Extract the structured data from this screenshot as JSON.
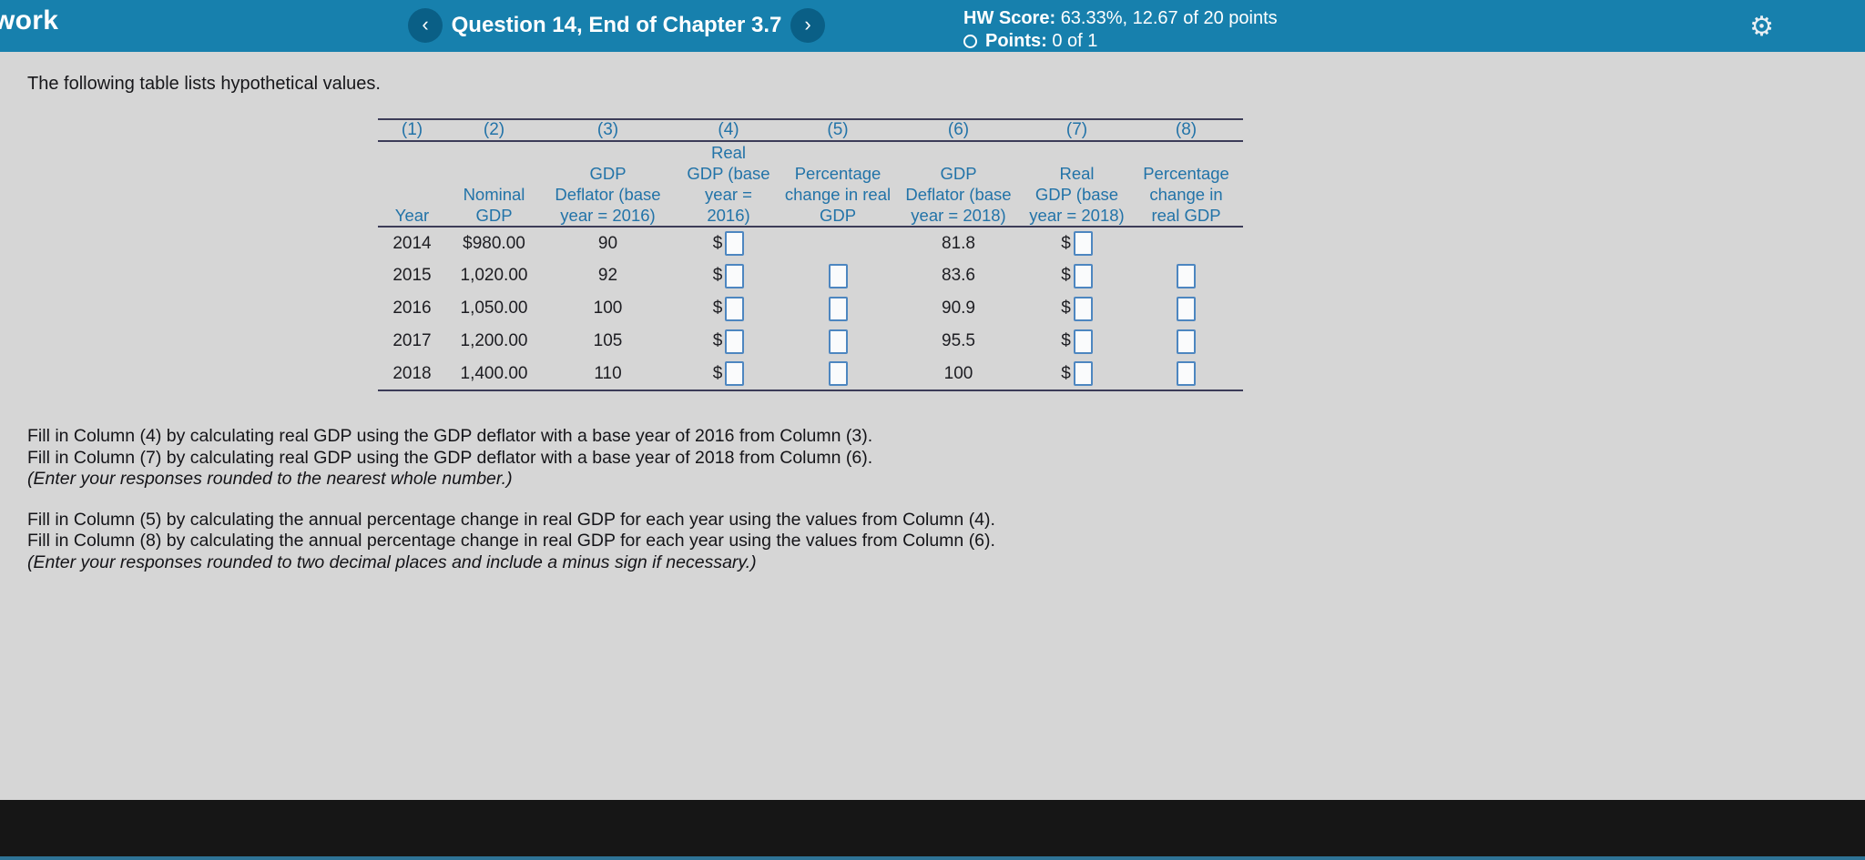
{
  "topbar": {
    "left_title": "work",
    "prev_icon": "‹",
    "next_icon": "›",
    "question_title": "Question 14, End of Chapter 3.7",
    "hw_score_label": "HW Score:",
    "hw_score_value": "63.33%, 12.67 of 20 points",
    "points_label": "Points:",
    "points_value": "0 of 1",
    "gear_icon": "⚙"
  },
  "intro": "The following table lists hypothetical values.",
  "table": {
    "col_numbers": [
      "(1)",
      "(2)",
      "(3)",
      "(4)",
      "(5)",
      "(6)",
      "(7)",
      "(8)"
    ],
    "headers": [
      [
        "Year"
      ],
      [
        "Nominal",
        "GDP"
      ],
      [
        "GDP",
        "Deflator (base",
        "year = 2016)"
      ],
      [
        "Real",
        "GDP (base",
        "year =",
        "2016)"
      ],
      [
        "Percentage",
        "change in real",
        "GDP"
      ],
      [
        "GDP",
        "Deflator (base",
        "year = 2018)"
      ],
      [
        "Real",
        "GDP (base",
        "year = 2018)"
      ],
      [
        "Percentage",
        "change in",
        "real GDP"
      ]
    ],
    "currency_symbol": "$",
    "input_value": "",
    "rows": [
      {
        "year": "2014",
        "nominal_gdp": "$980.00",
        "gdp_deflator_2016": "90",
        "gdp_deflator_2018": "81.8",
        "has_pct_inputs": false
      },
      {
        "year": "2015",
        "nominal_gdp": "1,020.00",
        "gdp_deflator_2016": "92",
        "gdp_deflator_2018": "83.6",
        "has_pct_inputs": true
      },
      {
        "year": "2016",
        "nominal_gdp": "1,050.00",
        "gdp_deflator_2016": "100",
        "gdp_deflator_2018": "90.9",
        "has_pct_inputs": true
      },
      {
        "year": "2017",
        "nominal_gdp": "1,200.00",
        "gdp_deflator_2016": "105",
        "gdp_deflator_2018": "95.5",
        "has_pct_inputs": true
      },
      {
        "year": "2018",
        "nominal_gdp": "1,400.00",
        "gdp_deflator_2016": "110",
        "gdp_deflator_2018": "100",
        "has_pct_inputs": true
      }
    ]
  },
  "instructions": {
    "col4_line": "Fill in Column (4) by calculating real GDP using the GDP deflator with a base year of 2016 from Column (3).",
    "col7_line": "Fill in Column (7) by calculating real GDP using the GDP deflator with a base year of 2018 from Column (6).",
    "note_whole": "(Enter your responses rounded to the nearest whole number.)",
    "col5_line": "Fill in Column (5) by calculating the annual percentage change in real GDP for each year using the values from Column (4).",
    "col8_line": "Fill in Column (8) by calculating the annual percentage change in real GDP for each year using the values from Column (6).",
    "note_decimal": "(Enter your responses rounded to two decimal places and include a minus sign if necessary.)"
  },
  "colors": {
    "topbar_bg": "#1780ad",
    "nav_circle_bg": "#0a5f86",
    "table_header_blue": "#2273a8",
    "table_rule": "#3c3c58",
    "input_border": "#4d86c0",
    "content_bg": "#d6d6d6",
    "bottombar_bg": "#161616"
  }
}
